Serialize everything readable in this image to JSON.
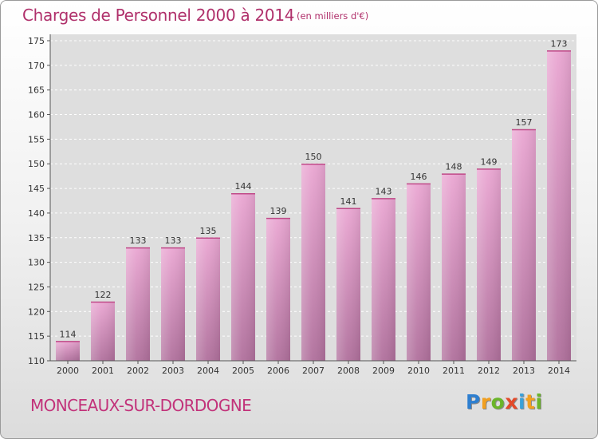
{
  "header": {
    "title": "Charges de Personnel 2000 à 2014",
    "subtitle": "(en milliers d'€)"
  },
  "footer": {
    "town": "MONCEAUX-SUR-DORDOGNE",
    "brand": "Proxiti"
  },
  "colors": {
    "accent": "#b0306b",
    "bar_top": "#eaa6d2",
    "bar_bottom": "#b0709c"
  },
  "chart_data": {
    "type": "bar",
    "categories": [
      "2000",
      "2001",
      "2002",
      "2003",
      "2004",
      "2005",
      "2006",
      "2007",
      "2008",
      "2009",
      "2010",
      "2011",
      "2012",
      "2013",
      "2014"
    ],
    "values": [
      114,
      122,
      133,
      133,
      135,
      144,
      139,
      150,
      141,
      143,
      146,
      148,
      149,
      157,
      173
    ],
    "title": "Charges de Personnel 2000 à 2014",
    "xlabel": "",
    "ylabel": "",
    "ylim": [
      110,
      175
    ],
    "yticks": [
      110,
      115,
      120,
      125,
      130,
      135,
      140,
      145,
      150,
      155,
      160,
      165,
      170,
      175
    ],
    "grid": true
  }
}
